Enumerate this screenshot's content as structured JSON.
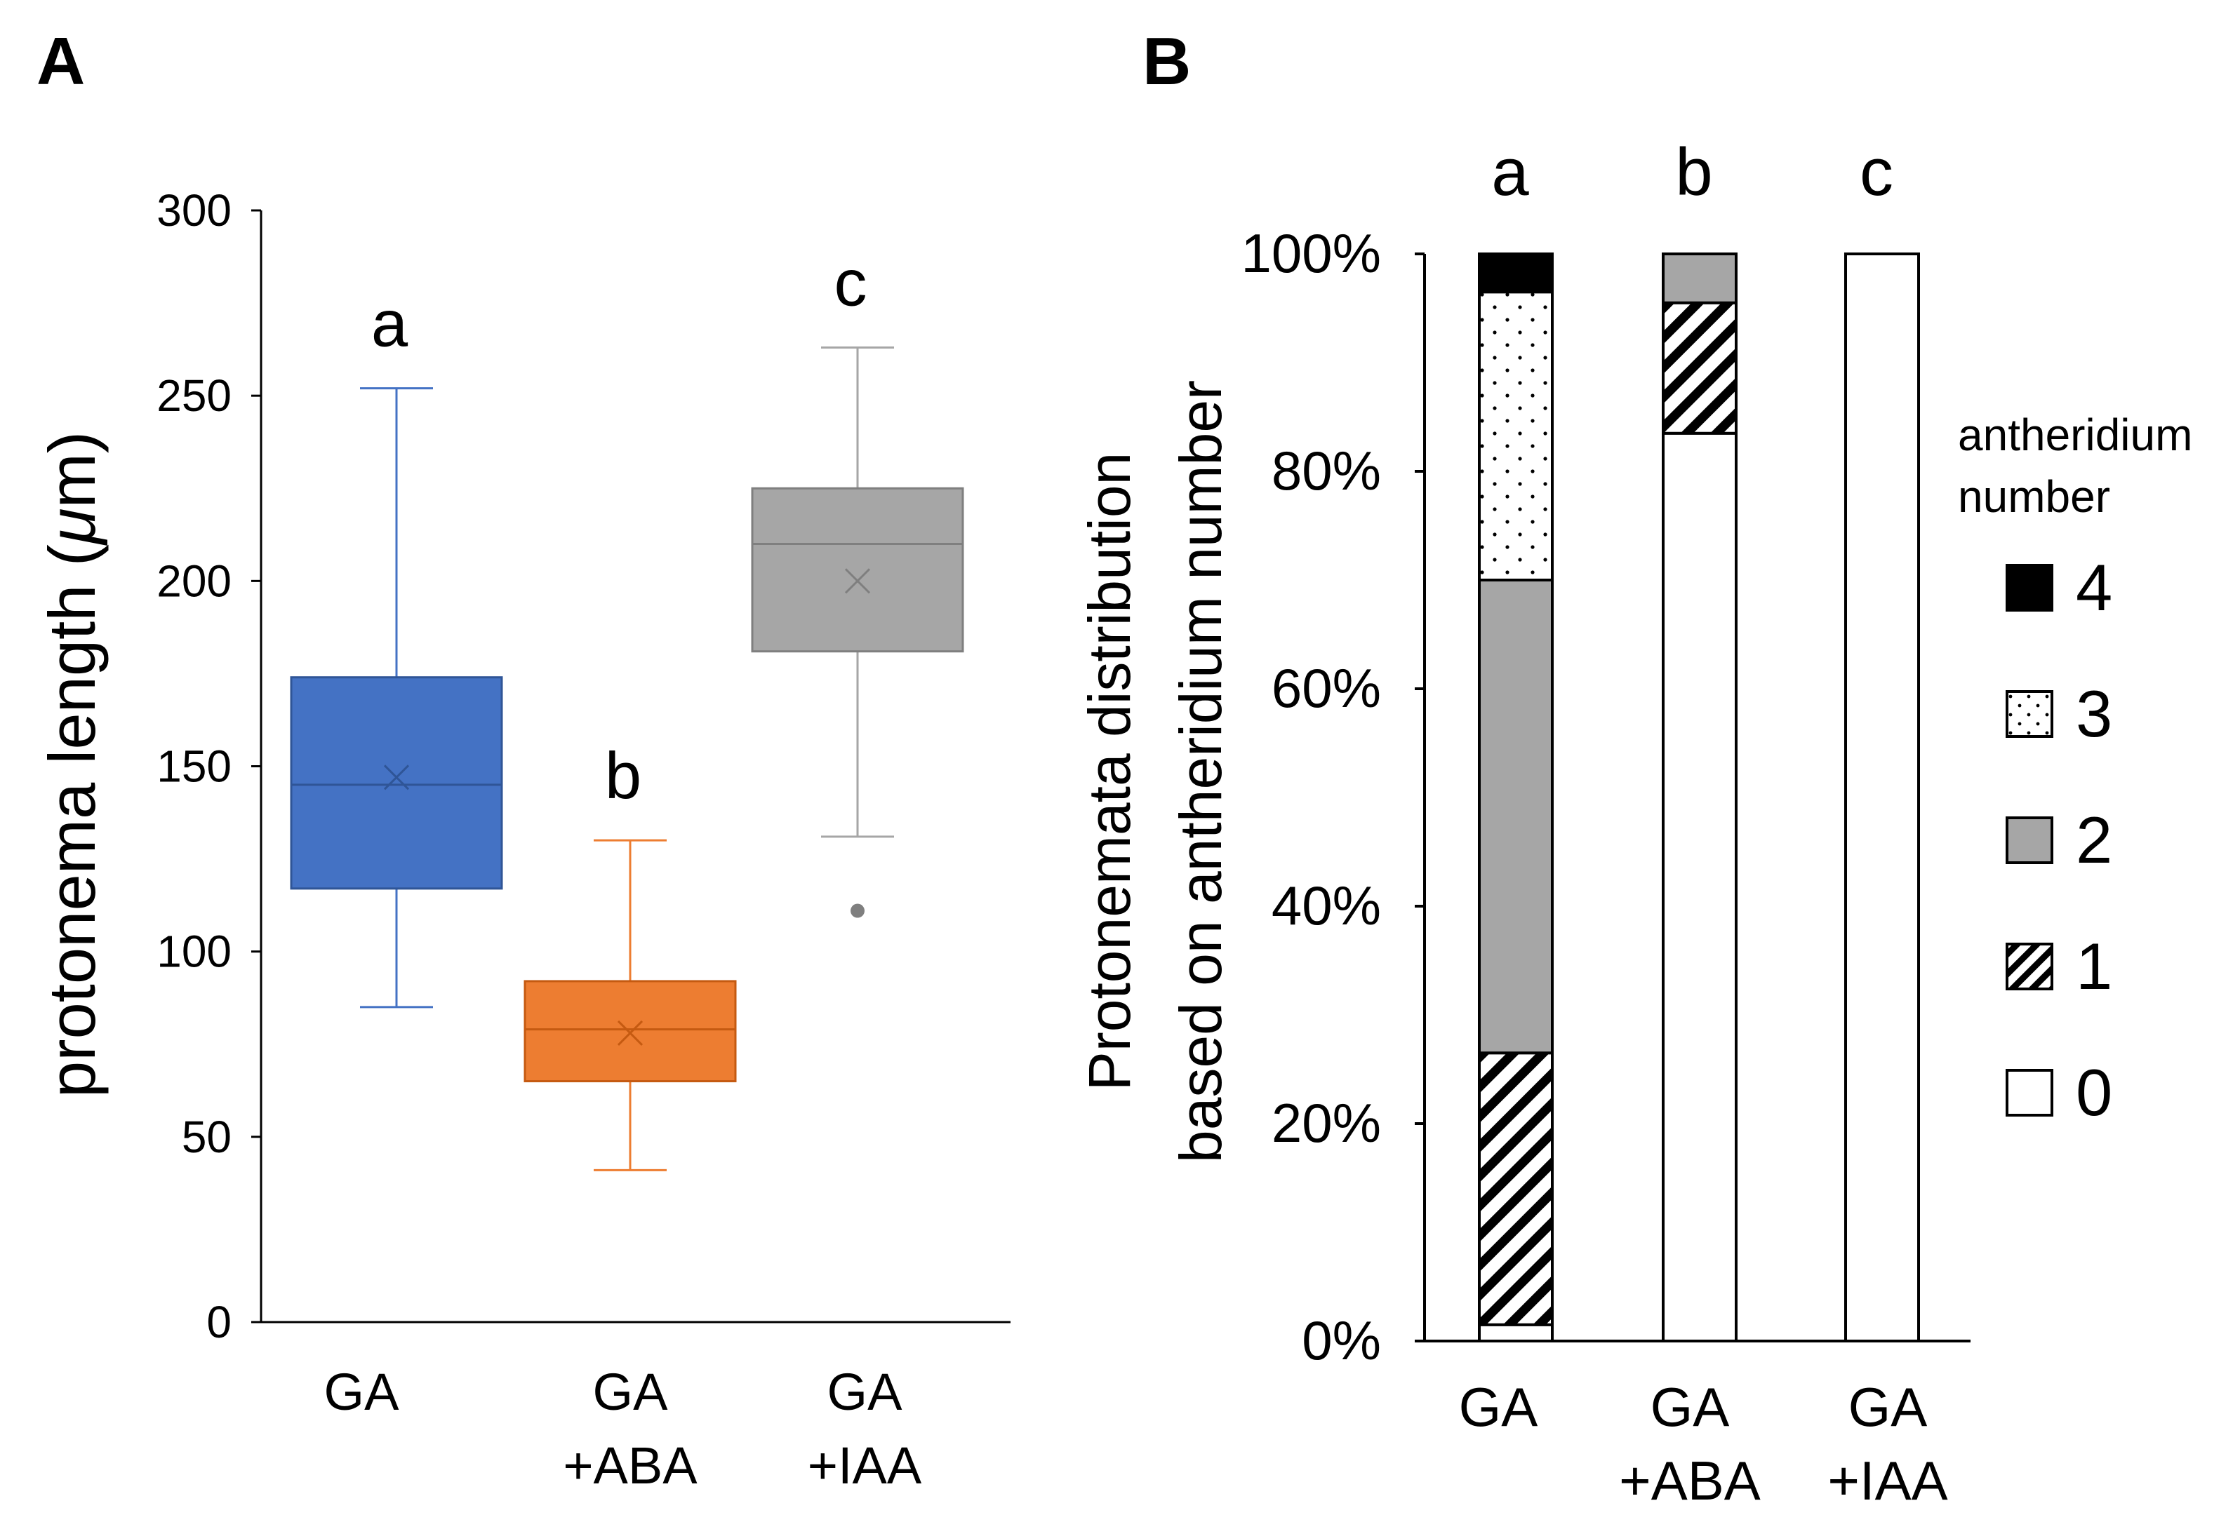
{
  "chart_data": [
    {
      "panel_label": "A",
      "type": "box",
      "ylabel": "protonema length  (μm)",
      "ylabel_main": "protonema length  (",
      "ylabel_mu": "μ",
      "ylabel_end": "m)",
      "ylim": [
        0,
        300
      ],
      "y_ticks": [
        0,
        50,
        100,
        150,
        200,
        250,
        300
      ],
      "y_tick_labels": [
        "0",
        "50",
        "100",
        "150",
        "200",
        "250",
        "300"
      ],
      "categories": [
        {
          "line1": "GA",
          "line2": ""
        },
        {
          "line1": "GA",
          "line2": "+ABA"
        },
        {
          "line1": "GA",
          "line2": "+IAA"
        }
      ],
      "boxes": [
        {
          "group": "GA",
          "whisker_low": 85,
          "q1": 117,
          "median": 145,
          "mean": 147,
          "q3": 174,
          "whisker_high": 252,
          "outliers": [],
          "letter": "a",
          "color": "#4472c4",
          "edge": "#2f5597"
        },
        {
          "group": "GA +ABA",
          "whisker_low": 41,
          "q1": 65,
          "median": 79,
          "mean": 78,
          "q3": 92,
          "whisker_high": 130,
          "outliers": [],
          "letter": "b",
          "color": "#ed7d31",
          "edge": "#c55a11"
        },
        {
          "group": "GA +IAA",
          "whisker_low": 131,
          "q1": 181,
          "median": 210,
          "mean": 200,
          "q3": 225,
          "whisker_high": 263,
          "outliers": [
            111
          ],
          "letter": "c",
          "color": "#a6a6a6",
          "edge": "#7f7f7f"
        }
      ]
    },
    {
      "panel_label": "B",
      "type": "stacked_bar",
      "ylabel_line1": "Protonemata distribution",
      "ylabel_line2": "based on antheridium number",
      "ylim": [
        0,
        100
      ],
      "y_ticks": [
        0,
        20,
        40,
        60,
        80,
        100
      ],
      "y_tick_labels": [
        "0%",
        "20%",
        "40%",
        "60%",
        "80%",
        "100%"
      ],
      "categories": [
        {
          "line1": "GA",
          "line2": ""
        },
        {
          "line1": "GA",
          "line2": "+ABA"
        },
        {
          "line1": "GA",
          "line2": "+IAA"
        }
      ],
      "letters": [
        "a",
        "b",
        "c"
      ],
      "legend_title_line1": "antheridium",
      "legend_title_line2": "number",
      "legend_entries": [
        "4",
        "3",
        "2",
        "1",
        "0"
      ],
      "series": [
        {
          "name": "0",
          "pattern": "white",
          "values": [
            1.5,
            83.5,
            100
          ]
        },
        {
          "name": "1",
          "pattern": "diagonal-hatch",
          "values": [
            25,
            12,
            0
          ]
        },
        {
          "name": "2",
          "pattern": "gray",
          "values": [
            43.5,
            4.5,
            0
          ]
        },
        {
          "name": "3",
          "pattern": "dots",
          "values": [
            26.5,
            0,
            0
          ]
        },
        {
          "name": "4",
          "pattern": "black",
          "values": [
            3.5,
            0,
            0
          ]
        }
      ]
    }
  ]
}
